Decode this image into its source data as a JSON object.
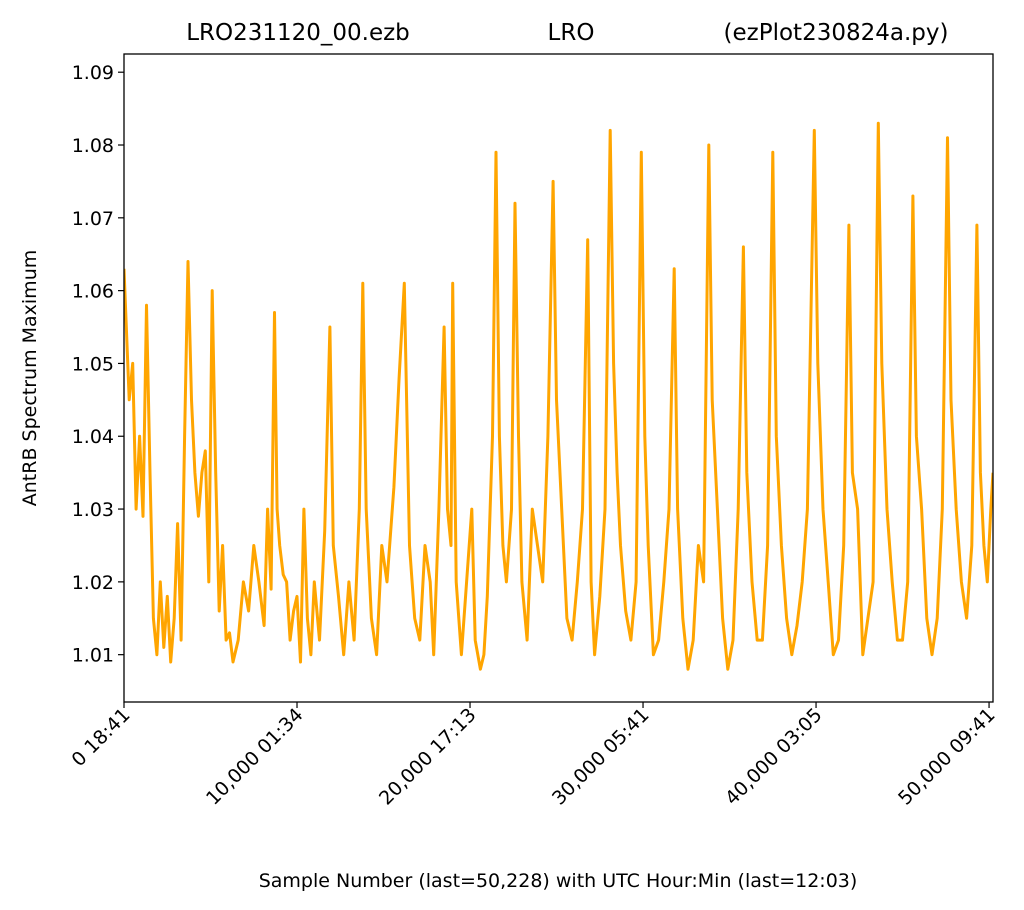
{
  "chart_data": {
    "type": "line",
    "title_left": "LRO231120_00.ezb",
    "title_center": "LRO",
    "title_right": "(ezPlot230824a.py)",
    "xlabel": "Sample Number (last=50,228) with UTC Hour:Min (last=12:03)",
    "ylabel": "AntRB Spectrum Maximum",
    "xlim": [
      0,
      50228
    ],
    "ylim": [
      1.0035,
      1.0925
    ],
    "x_ticks": [
      {
        "value": 0,
        "label": "0  18:41"
      },
      {
        "value": 10000,
        "label": "10,000  01:34"
      },
      {
        "value": 20000,
        "label": "20,000  17:13"
      },
      {
        "value": 30000,
        "label": "30,000  05:41"
      },
      {
        "value": 40000,
        "label": "40,000  03:05"
      },
      {
        "value": 50000,
        "label": "50,000  09:41"
      }
    ],
    "y_ticks": [
      {
        "value": 1.01,
        "label": "1.01"
      },
      {
        "value": 1.02,
        "label": "1.02"
      },
      {
        "value": 1.03,
        "label": "1.03"
      },
      {
        "value": 1.04,
        "label": "1.04"
      },
      {
        "value": 1.05,
        "label": "1.05"
      },
      {
        "value": 1.06,
        "label": "1.06"
      },
      {
        "value": 1.07,
        "label": "1.07"
      },
      {
        "value": 1.08,
        "label": "1.08"
      },
      {
        "value": 1.09,
        "label": "1.09"
      }
    ],
    "grid": false,
    "series": [
      {
        "color": "#ffa500",
        "points": [
          [
            0,
            1.063
          ],
          [
            300,
            1.045
          ],
          [
            500,
            1.05
          ],
          [
            700,
            1.03
          ],
          [
            900,
            1.04
          ],
          [
            1100,
            1.029
          ],
          [
            1300,
            1.058
          ],
          [
            1500,
            1.035
          ],
          [
            1700,
            1.015
          ],
          [
            1900,
            1.01
          ],
          [
            2100,
            1.02
          ],
          [
            2300,
            1.011
          ],
          [
            2500,
            1.018
          ],
          [
            2700,
            1.009
          ],
          [
            2900,
            1.015
          ],
          [
            3100,
            1.028
          ],
          [
            3300,
            1.012
          ],
          [
            3500,
            1.04
          ],
          [
            3700,
            1.064
          ],
          [
            3900,
            1.045
          ],
          [
            4100,
            1.035
          ],
          [
            4300,
            1.029
          ],
          [
            4500,
            1.035
          ],
          [
            4700,
            1.038
          ],
          [
            4900,
            1.02
          ],
          [
            5100,
            1.06
          ],
          [
            5300,
            1.035
          ],
          [
            5500,
            1.016
          ],
          [
            5700,
            1.025
          ],
          [
            5900,
            1.012
          ],
          [
            6100,
            1.013
          ],
          [
            6300,
            1.009
          ],
          [
            6600,
            1.012
          ],
          [
            6900,
            1.02
          ],
          [
            7200,
            1.016
          ],
          [
            7500,
            1.025
          ],
          [
            7800,
            1.02
          ],
          [
            8100,
            1.014
          ],
          [
            8300,
            1.03
          ],
          [
            8500,
            1.019
          ],
          [
            8700,
            1.057
          ],
          [
            8850,
            1.03
          ],
          [
            9000,
            1.025
          ],
          [
            9200,
            1.021
          ],
          [
            9400,
            1.02
          ],
          [
            9600,
            1.012
          ],
          [
            9800,
            1.016
          ],
          [
            10000,
            1.018
          ],
          [
            10200,
            1.009
          ],
          [
            10400,
            1.03
          ],
          [
            10600,
            1.015
          ],
          [
            10800,
            1.01
          ],
          [
            11000,
            1.02
          ],
          [
            11300,
            1.012
          ],
          [
            11600,
            1.027
          ],
          [
            11900,
            1.055
          ],
          [
            12100,
            1.025
          ],
          [
            12400,
            1.018
          ],
          [
            12700,
            1.01
          ],
          [
            13000,
            1.02
          ],
          [
            13300,
            1.012
          ],
          [
            13600,
            1.03
          ],
          [
            13800,
            1.061
          ],
          [
            14000,
            1.03
          ],
          [
            14300,
            1.015
          ],
          [
            14600,
            1.01
          ],
          [
            14900,
            1.025
          ],
          [
            15200,
            1.02
          ],
          [
            15600,
            1.033
          ],
          [
            15900,
            1.048
          ],
          [
            16200,
            1.061
          ],
          [
            16500,
            1.025
          ],
          [
            16800,
            1.015
          ],
          [
            17100,
            1.012
          ],
          [
            17400,
            1.025
          ],
          [
            17700,
            1.02
          ],
          [
            17900,
            1.01
          ],
          [
            18200,
            1.03
          ],
          [
            18500,
            1.055
          ],
          [
            18700,
            1.03
          ],
          [
            18900,
            1.025
          ],
          [
            19000,
            1.061
          ],
          [
            19200,
            1.02
          ],
          [
            19500,
            1.01
          ],
          [
            19800,
            1.02
          ],
          [
            20100,
            1.03
          ],
          [
            20300,
            1.012
          ],
          [
            20600,
            1.008
          ],
          [
            20800,
            1.01
          ],
          [
            21000,
            1.018
          ],
          [
            21300,
            1.04
          ],
          [
            21500,
            1.079
          ],
          [
            21700,
            1.04
          ],
          [
            21900,
            1.025
          ],
          [
            22100,
            1.02
          ],
          [
            22400,
            1.03
          ],
          [
            22600,
            1.072
          ],
          [
            22800,
            1.04
          ],
          [
            23000,
            1.02
          ],
          [
            23300,
            1.012
          ],
          [
            23600,
            1.03
          ],
          [
            23900,
            1.025
          ],
          [
            24200,
            1.02
          ],
          [
            24500,
            1.04
          ],
          [
            24800,
            1.075
          ],
          [
            25000,
            1.045
          ],
          [
            25300,
            1.03
          ],
          [
            25600,
            1.015
          ],
          [
            25900,
            1.012
          ],
          [
            26200,
            1.02
          ],
          [
            26500,
            1.03
          ],
          [
            26800,
            1.067
          ],
          [
            27000,
            1.02
          ],
          [
            27200,
            1.01
          ],
          [
            27500,
            1.018
          ],
          [
            27800,
            1.03
          ],
          [
            28100,
            1.082
          ],
          [
            28300,
            1.05
          ],
          [
            28500,
            1.035
          ],
          [
            28700,
            1.025
          ],
          [
            29000,
            1.016
          ],
          [
            29300,
            1.012
          ],
          [
            29600,
            1.02
          ],
          [
            29900,
            1.079
          ],
          [
            30100,
            1.04
          ],
          [
            30300,
            1.025
          ],
          [
            30600,
            1.01
          ],
          [
            30900,
            1.012
          ],
          [
            31200,
            1.02
          ],
          [
            31500,
            1.03
          ],
          [
            31800,
            1.063
          ],
          [
            32000,
            1.03
          ],
          [
            32300,
            1.015
          ],
          [
            32600,
            1.008
          ],
          [
            32900,
            1.012
          ],
          [
            33200,
            1.025
          ],
          [
            33500,
            1.02
          ],
          [
            33800,
            1.08
          ],
          [
            34000,
            1.045
          ],
          [
            34300,
            1.03
          ],
          [
            34600,
            1.015
          ],
          [
            34900,
            1.008
          ],
          [
            35200,
            1.012
          ],
          [
            35500,
            1.03
          ],
          [
            35800,
            1.066
          ],
          [
            36000,
            1.035
          ],
          [
            36300,
            1.02
          ],
          [
            36600,
            1.012
          ],
          [
            36900,
            1.012
          ],
          [
            37200,
            1.025
          ],
          [
            37500,
            1.079
          ],
          [
            37700,
            1.04
          ],
          [
            38000,
            1.025
          ],
          [
            38300,
            1.015
          ],
          [
            38600,
            1.01
          ],
          [
            38900,
            1.014
          ],
          [
            39200,
            1.02
          ],
          [
            39500,
            1.03
          ],
          [
            39900,
            1.082
          ],
          [
            40100,
            1.05
          ],
          [
            40400,
            1.03
          ],
          [
            40700,
            1.02
          ],
          [
            41000,
            1.01
          ],
          [
            41300,
            1.012
          ],
          [
            41600,
            1.025
          ],
          [
            41900,
            1.069
          ],
          [
            42100,
            1.035
          ],
          [
            42400,
            1.03
          ],
          [
            42700,
            1.01
          ],
          [
            43000,
            1.015
          ],
          [
            43300,
            1.02
          ],
          [
            43600,
            1.083
          ],
          [
            43800,
            1.05
          ],
          [
            44100,
            1.03
          ],
          [
            44400,
            1.02
          ],
          [
            44700,
            1.012
          ],
          [
            45000,
            1.012
          ],
          [
            45300,
            1.02
          ],
          [
            45600,
            1.073
          ],
          [
            45800,
            1.04
          ],
          [
            46100,
            1.03
          ],
          [
            46400,
            1.015
          ],
          [
            46700,
            1.01
          ],
          [
            47000,
            1.015
          ],
          [
            47300,
            1.03
          ],
          [
            47600,
            1.081
          ],
          [
            47800,
            1.045
          ],
          [
            48100,
            1.03
          ],
          [
            48400,
            1.02
          ],
          [
            48700,
            1.015
          ],
          [
            49000,
            1.025
          ],
          [
            49300,
            1.069
          ],
          [
            49500,
            1.035
          ],
          [
            49700,
            1.025
          ],
          [
            49900,
            1.02
          ],
          [
            50100,
            1.03
          ],
          [
            50228,
            1.035
          ]
        ]
      }
    ]
  }
}
